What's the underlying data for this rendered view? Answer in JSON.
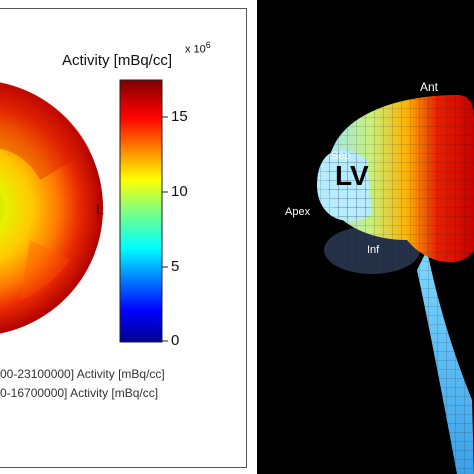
{
  "polar_map": {
    "colorbar": {
      "title": "Activity [mBq/cc]",
      "exponent_label": "x 10",
      "exponent_power": "6",
      "ticks": [
        "15",
        "10",
        "5",
        "0"
      ],
      "colormap": "jet"
    },
    "side_label": "L",
    "legend": [
      "00-23100000] Activity [mBq/cc]",
      "0-16700000] Activity [mBq/cc]"
    ]
  },
  "heart_render": {
    "labels": {
      "lv": "LV",
      "ant": "Ant",
      "sep": "Sep",
      "apex": "Apex",
      "inf": "Inf"
    },
    "background": "#000000"
  }
}
